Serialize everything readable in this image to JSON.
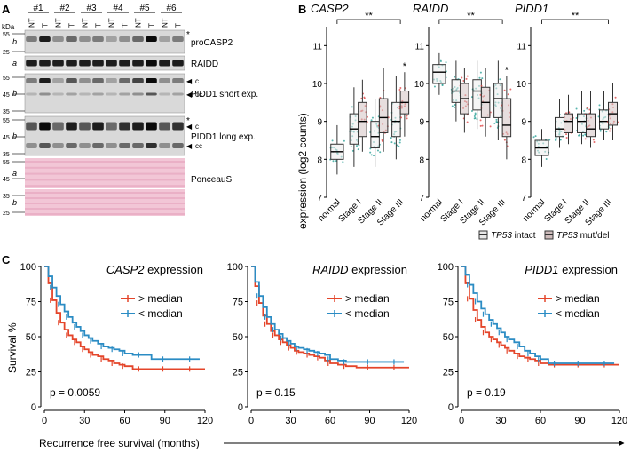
{
  "panel_a": {
    "label": "A",
    "kda_label": "kDa",
    "sample_groups": [
      "#1",
      "#2",
      "#3",
      "#4",
      "#5",
      "#6"
    ],
    "lane_labels": [
      "NT",
      "T",
      "NT",
      "T",
      "NT",
      "T",
      "NT",
      "T",
      "NT",
      "T",
      "NT",
      "T"
    ],
    "blots": [
      {
        "name": "proCASP2",
        "label": "proCASP2",
        "marker": "*",
        "letter": "b",
        "mw": [
          "55",
          "25"
        ]
      },
      {
        "name": "RAIDD",
        "label": "RAIDD",
        "marker": "",
        "letter": "a",
        "mw": []
      },
      {
        "name": "PIDD1 short",
        "label": "PIDD1 short exp.",
        "marker": "",
        "letter": "b",
        "mw": [
          "55",
          "45",
          "35"
        ],
        "arrows": [
          "c",
          "cc"
        ]
      },
      {
        "name": "PIDD1 long",
        "label": "PIDD1 long exp.",
        "marker": "*",
        "letter": "b",
        "mw": [
          "55",
          "45",
          "35"
        ],
        "arrows": [
          "c",
          "cc"
        ]
      },
      {
        "name": "PonceauS",
        "label": "PonceauS",
        "letters": [
          "a",
          "b"
        ],
        "mw": [
          "55",
          "45",
          "35",
          "25"
        ]
      }
    ]
  },
  "panel_b": {
    "label": "B",
    "ylabel": "expression (log2 counts)",
    "legend": [
      {
        "gene": "TP53",
        "text": " intact",
        "color": "#e8e8e8"
      },
      {
        "gene": "TP53",
        "text": " mut/del",
        "color": "#cfbcbc"
      }
    ],
    "colors": {
      "intact": "#2fa39a",
      "mut": "#e04848",
      "box_intact": "#ededed",
      "box_mut": "#d3c2c2"
    }
  },
  "panel_c": {
    "label": "C",
    "ylabel": "Survival %",
    "xlabel": "Recurrence free survival (months)",
    "legend_above": "> median",
    "legend_below": "< median",
    "colors": {
      "above": "#e4452a",
      "below": "#2b8cc4"
    }
  },
  "chart_data": [
    {
      "type": "box",
      "title": "CASP2",
      "categories": [
        "normal",
        "Stage I",
        "Stage II",
        "Stage III"
      ],
      "ylim": [
        7,
        11.5
      ],
      "yticks": [
        7,
        8,
        9,
        10,
        11
      ],
      "significance": [
        {
          "from": "normal",
          "to": "Stage III",
          "label": "**"
        }
      ],
      "stars": [
        {
          "category": "Stage III",
          "series": "TP53 mut/del",
          "label": "*"
        }
      ],
      "series": [
        {
          "name": "TP53 intact",
          "boxes": [
            [
              7.6,
              8.0,
              8.2,
              8.4,
              8.9
            ],
            [
              7.8,
              8.4,
              8.8,
              9.2,
              9.9
            ],
            [
              7.8,
              8.3,
              8.6,
              9.0,
              9.6
            ],
            [
              8.0,
              8.6,
              9.0,
              9.5,
              10.2
            ]
          ]
        },
        {
          "name": "TP53 mut/del",
          "boxes": [
            null,
            [
              8.2,
              8.6,
              9.0,
              9.5,
              10.1
            ],
            [
              8.2,
              8.7,
              9.1,
              9.6,
              10.4
            ],
            [
              8.6,
              9.2,
              9.5,
              9.8,
              10.3
            ]
          ]
        }
      ]
    },
    {
      "type": "box",
      "title": "RAIDD",
      "categories": [
        "normal",
        "Stage I",
        "Stage II",
        "Stage III"
      ],
      "ylim": [
        7,
        11.5
      ],
      "yticks": [
        7,
        8,
        9,
        10,
        11
      ],
      "significance": [
        {
          "from": "normal",
          "to": "Stage III",
          "label": "**"
        }
      ],
      "stars": [
        {
          "category": "Stage III",
          "series": "TP53 mut/del",
          "label": "*"
        }
      ],
      "series": [
        {
          "name": "TP53 intact",
          "boxes": [
            [
              9.7,
              10.0,
              10.3,
              10.5,
              10.8
            ],
            [
              9.0,
              9.5,
              9.8,
              10.1,
              10.6
            ],
            [
              8.8,
              9.3,
              9.8,
              10.1,
              10.6
            ],
            [
              8.5,
              9.1,
              9.6,
              10.0,
              10.6
            ]
          ]
        },
        {
          "name": "TP53 mut/del",
          "boxes": [
            null,
            [
              8.7,
              9.2,
              9.6,
              10.0,
              10.4
            ],
            [
              8.6,
              9.1,
              9.5,
              9.9,
              10.4
            ],
            [
              8.0,
              8.6,
              8.9,
              9.6,
              10.2
            ]
          ]
        }
      ]
    },
    {
      "type": "box",
      "title": "PIDD1",
      "categories": [
        "normal",
        "Stage I",
        "Stage II",
        "Stage III"
      ],
      "ylim": [
        7,
        11.5
      ],
      "yticks": [
        7,
        8,
        9,
        10,
        11
      ],
      "significance": [
        {
          "from": "normal",
          "to": "Stage III",
          "label": "**"
        }
      ],
      "stars": [],
      "series": [
        {
          "name": "TP53 intact",
          "boxes": [
            [
              7.8,
              8.1,
              8.3,
              8.5,
              8.8
            ],
            [
              8.3,
              8.6,
              8.8,
              9.1,
              9.6
            ],
            [
              8.4,
              8.7,
              9.0,
              9.2,
              9.8
            ],
            [
              8.5,
              8.8,
              9.0,
              9.3,
              9.8
            ]
          ]
        },
        {
          "name": "TP53 mut/del",
          "boxes": [
            null,
            [
              8.4,
              8.7,
              9.0,
              9.2,
              9.7
            ],
            [
              8.3,
              8.6,
              8.8,
              9.2,
              9.8
            ],
            [
              8.5,
              8.9,
              9.2,
              9.5,
              10.0
            ]
          ]
        }
      ]
    },
    {
      "type": "line",
      "title_gene": "CASP2",
      "title_suffix": " expression",
      "p_label": "p = 0.0059",
      "xlim": [
        0,
        120
      ],
      "ylim": [
        0,
        100
      ],
      "xticks": [
        0,
        30,
        60,
        90,
        120
      ],
      "yticks": [
        0,
        25,
        50,
        75,
        100
      ],
      "series": [
        {
          "name": "> median",
          "x": [
            0,
            3,
            6,
            9,
            12,
            15,
            18,
            21,
            24,
            27,
            30,
            33,
            36,
            40,
            44,
            48,
            52,
            56,
            60,
            66,
            72,
            80,
            90,
            100,
            110,
            120
          ],
          "y": [
            100,
            88,
            76,
            67,
            60,
            55,
            51,
            48,
            46,
            43,
            41,
            39,
            37,
            36,
            34,
            33,
            31,
            30,
            29,
            27,
            27,
            27,
            27,
            27,
            27,
            27
          ]
        },
        {
          "name": "< median",
          "x": [
            0,
            3,
            6,
            9,
            12,
            15,
            18,
            21,
            24,
            27,
            30,
            33,
            36,
            40,
            44,
            48,
            52,
            56,
            60,
            66,
            72,
            80,
            90,
            100,
            110,
            116
          ],
          "y": [
            100,
            93,
            85,
            79,
            73,
            68,
            64,
            60,
            57,
            54,
            51,
            49,
            47,
            45,
            43,
            42,
            41,
            40,
            38,
            37,
            37,
            34,
            34,
            34,
            34,
            34
          ]
        }
      ]
    },
    {
      "type": "line",
      "title_gene": "RAIDD",
      "title_suffix": " expression",
      "p_label": "p = 0.15",
      "xlim": [
        0,
        120
      ],
      "ylim": [
        0,
        100
      ],
      "xticks": [
        0,
        30,
        60,
        90,
        120
      ],
      "yticks": [
        0,
        25,
        50,
        75,
        100
      ],
      "series": [
        {
          "name": "> median",
          "x": [
            0,
            3,
            6,
            9,
            12,
            15,
            18,
            21,
            24,
            27,
            30,
            33,
            36,
            40,
            44,
            48,
            52,
            56,
            60,
            66,
            72,
            80,
            90,
            100,
            110,
            120
          ],
          "y": [
            100,
            86,
            74,
            65,
            59,
            54,
            51,
            48,
            46,
            44,
            42,
            40,
            39,
            38,
            37,
            36,
            35,
            33,
            31,
            30,
            29,
            28,
            28,
            28,
            28,
            28
          ]
        },
        {
          "name": "< median",
          "x": [
            0,
            3,
            6,
            9,
            12,
            15,
            18,
            21,
            24,
            27,
            30,
            33,
            36,
            40,
            44,
            48,
            52,
            56,
            60,
            66,
            72,
            80,
            90,
            100,
            110,
            116
          ],
          "y": [
            100,
            89,
            79,
            71,
            64,
            59,
            55,
            52,
            49,
            47,
            45,
            43,
            42,
            41,
            40,
            39,
            38,
            37,
            34,
            33,
            32,
            32,
            32,
            32,
            32,
            32
          ]
        }
      ]
    },
    {
      "type": "line",
      "title_gene": "PIDD1",
      "title_suffix": " expression",
      "p_label": "p = 0.19",
      "xlim": [
        0,
        120
      ],
      "ylim": [
        0,
        100
      ],
      "xticks": [
        0,
        30,
        60,
        90,
        120
      ],
      "yticks": [
        0,
        25,
        50,
        75,
        100
      ],
      "series": [
        {
          "name": "> median",
          "x": [
            0,
            3,
            6,
            9,
            12,
            15,
            18,
            21,
            24,
            27,
            30,
            33,
            36,
            40,
            44,
            48,
            52,
            56,
            60,
            66,
            72,
            80,
            90,
            100,
            110,
            120
          ],
          "y": [
            100,
            88,
            77,
            69,
            62,
            57,
            53,
            50,
            48,
            46,
            44,
            42,
            40,
            38,
            36,
            35,
            34,
            33,
            31,
            30,
            30,
            30,
            30,
            30,
            30,
            30
          ]
        },
        {
          "name": "< median",
          "x": [
            0,
            3,
            6,
            9,
            12,
            15,
            18,
            21,
            24,
            27,
            30,
            33,
            36,
            40,
            44,
            48,
            52,
            56,
            60,
            66,
            72,
            80,
            90,
            100,
            110,
            116
          ],
          "y": [
            100,
            94,
            87,
            81,
            75,
            70,
            66,
            62,
            59,
            56,
            53,
            50,
            48,
            46,
            43,
            40,
            38,
            36,
            34,
            31,
            31,
            31,
            31,
            31,
            31,
            31
          ]
        }
      ]
    }
  ]
}
